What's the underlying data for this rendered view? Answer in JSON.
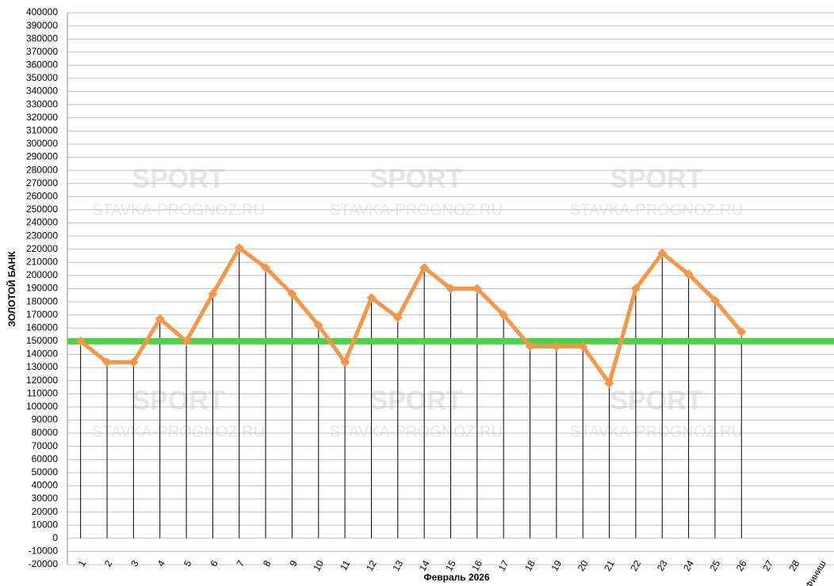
{
  "chart_data": {
    "type": "line",
    "xlabel": "Февраль 2026",
    "ylabel": "ЗОЛОТОЙ БАНК",
    "watermark": [
      "SPORT",
      "STAVKA-PROGNOZ.RU"
    ],
    "categories": [
      "1",
      "2",
      "3",
      "4",
      "5",
      "6",
      "7",
      "8",
      "9",
      "10",
      "11",
      "12",
      "13",
      "14",
      "15",
      "16",
      "17",
      "18",
      "19",
      "20",
      "21",
      "22",
      "23",
      "24",
      "25",
      "26",
      "27",
      "28",
      "Финиш"
    ],
    "series": [
      {
        "color": "#f79646",
        "values": [
          150000,
          134000,
          134000,
          167000,
          150000,
          186000,
          221000,
          206000,
          186000,
          162000,
          134000,
          183000,
          168000,
          206000,
          190000,
          190000,
          170000,
          146000,
          146000,
          146000,
          118000,
          190000,
          217000,
          201000,
          181000,
          157000,
          null,
          null,
          null
        ]
      }
    ],
    "reference_line": {
      "value": 150000,
      "color": "#4fd14a"
    },
    "ylim": [
      -20000,
      400000
    ],
    "yticks": [
      -20000,
      -10000,
      0,
      10000,
      20000,
      30000,
      40000,
      50000,
      60000,
      70000,
      80000,
      90000,
      100000,
      110000,
      120000,
      130000,
      140000,
      150000,
      160000,
      170000,
      180000,
      190000,
      200000,
      210000,
      220000,
      230000,
      240000,
      250000,
      260000,
      270000,
      280000,
      290000,
      300000,
      310000,
      320000,
      330000,
      340000,
      350000,
      360000,
      370000,
      380000,
      390000,
      400000
    ],
    "grid": true
  }
}
